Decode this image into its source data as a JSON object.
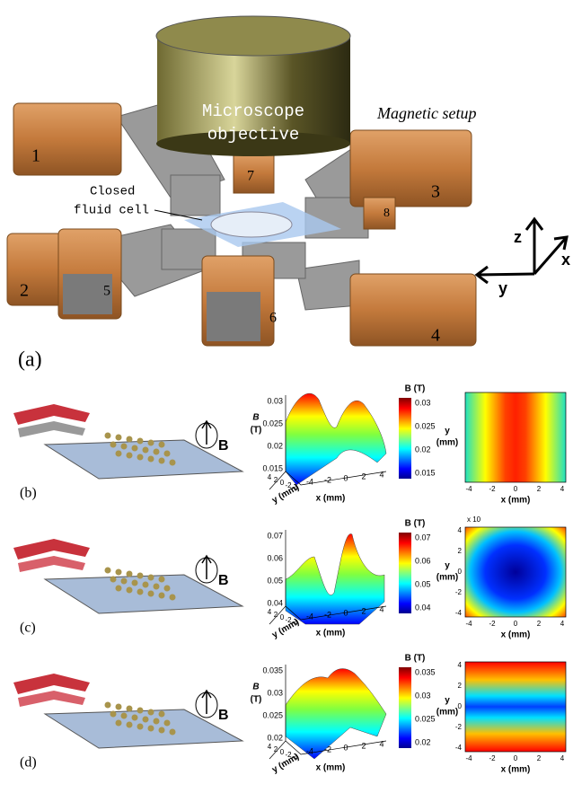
{
  "panel_a": {
    "label": "(a)",
    "objective": [
      "Microscope",
      "objective"
    ],
    "setup_label": "Magnetic setup",
    "coils": [
      "1",
      "2",
      "3",
      "4",
      "5",
      "6",
      "7",
      "8"
    ],
    "cell_label": [
      "Closed",
      "fluid cell"
    ],
    "axes": [
      "z",
      "x",
      "y"
    ]
  },
  "panels": [
    {
      "label": "(b)",
      "field": "B",
      "surface": {
        "z_label": [
          "B",
          "(T)"
        ],
        "z_ticks": [
          "0.03",
          "0.025",
          "0.02",
          "0.015"
        ],
        "y_label": "y (mm)",
        "y_ticks": [
          "4",
          "2",
          "0",
          "-2",
          "-4"
        ],
        "x_label": "x (mm)",
        "x_ticks": [
          "-4",
          "-2",
          "0",
          "2",
          "4"
        ]
      },
      "colorbar": {
        "title": "B (T)",
        "ticks": [
          "0.03",
          "0.025",
          "0.02",
          "0.015"
        ]
      },
      "map": {
        "y_label": [
          "y",
          "(mm)"
        ],
        "y_ticks": [],
        "x_label": "x (mm)",
        "x_ticks": [
          "-4",
          "-2",
          "0",
          "2",
          "4"
        ]
      }
    },
    {
      "label": "(c)",
      "field": "B",
      "surface": {
        "z_label": [],
        "z_ticks": [
          "0.07",
          "0.06",
          "0.05",
          "0.04"
        ],
        "y_label": "y (mm)",
        "y_ticks": [
          "4",
          "2",
          "0",
          "-2",
          "-4"
        ],
        "x_label": "x (mm)",
        "x_ticks": [
          "-4",
          "-2",
          "0",
          "2",
          "4"
        ]
      },
      "colorbar": {
        "title": "B (T)",
        "ticks": [
          "0.07",
          "0.06",
          "0.05",
          "0.04"
        ]
      },
      "map": {
        "note": "x 10",
        "y_label": [
          "y",
          "(mm)"
        ],
        "y_ticks": [
          "4",
          "2",
          "0",
          "-2",
          "-4"
        ],
        "x_label": "x (mm)",
        "x_ticks": [
          "-4",
          "-2",
          "0",
          "2",
          "4"
        ]
      }
    },
    {
      "label": "(d)",
      "field": "B",
      "surface": {
        "z_label": [
          "B",
          "(T)"
        ],
        "z_ticks": [
          "0.035",
          "0.03",
          "0.025",
          "0.02"
        ],
        "y_label": "y (mm)",
        "y_ticks": [
          "4",
          "2",
          "0",
          "-2",
          "-4"
        ],
        "x_label": "x (mm)",
        "x_ticks": [
          "-4",
          "-2",
          "0",
          "2",
          "4"
        ]
      },
      "colorbar": {
        "title": "B (T)",
        "ticks": [
          "0.035",
          "0.03",
          "0.025",
          "0.02"
        ]
      },
      "map": {
        "y_label": [
          "y",
          "(mm)"
        ],
        "y_ticks": [
          "4",
          "2",
          "0",
          "-2",
          "-4"
        ],
        "x_label": "x (mm)",
        "x_ticks": [
          "-4",
          "-2",
          "0",
          "2",
          "4"
        ]
      }
    }
  ]
}
